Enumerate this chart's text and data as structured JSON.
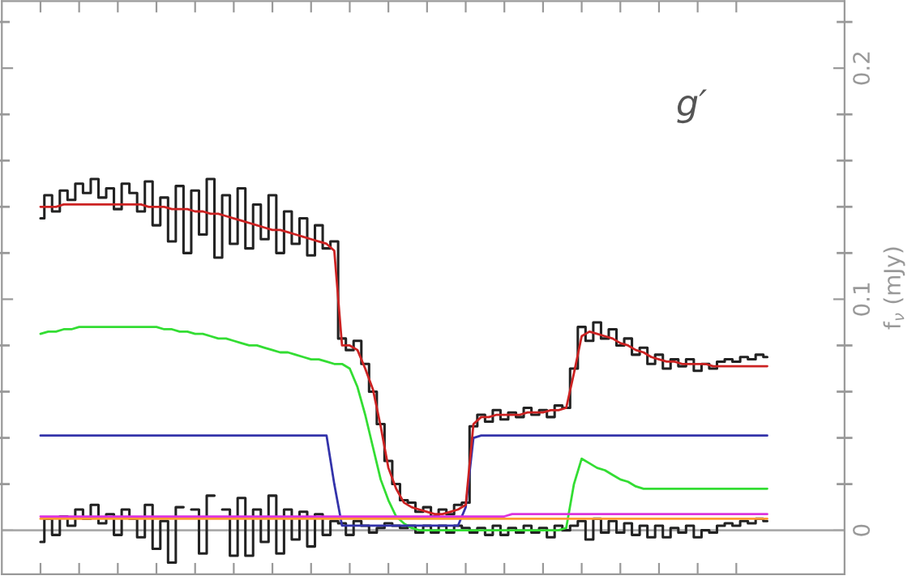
{
  "chart_data": {
    "type": "line",
    "ylabel": "f$_{ν}$ (mJy)",
    "annotations": [
      "g′"
    ],
    "categories": [
      null,
      null,
      null,
      null,
      null,
      null,
      null,
      null,
      null,
      null,
      null,
      null,
      null,
      null,
      null,
      null,
      null,
      null,
      null,
      null,
      null,
      null,
      null,
      null,
      null,
      null,
      null,
      null,
      null,
      null,
      null,
      null,
      null,
      null,
      null,
      null,
      null,
      null,
      null,
      null,
      null,
      null,
      null,
      null,
      null,
      null,
      null,
      null,
      null,
      null,
      null,
      null,
      null,
      null,
      null,
      null,
      null,
      null,
      null,
      null,
      null,
      null,
      null,
      null,
      null,
      null,
      null,
      null,
      null,
      null,
      null,
      null,
      null,
      null,
      null,
      null,
      null,
      null,
      null,
      null,
      null,
      null,
      null,
      null,
      null,
      null,
      null,
      null,
      null,
      null,
      null,
      null,
      null,
      null,
      null
    ],
    "series": [
      {
        "type": "step",
        "color": "#222222",
        "values": [
          0.135,
          0.145,
          0.138,
          0.147,
          0.143,
          0.15,
          0.146,
          0.152,
          0.144,
          0.148,
          0.139,
          0.15,
          0.146,
          0.138,
          0.151,
          0.132,
          0.144,
          0.125,
          0.149,
          0.12,
          0.147,
          0.128,
          0.152,
          0.118,
          0.145,
          0.124,
          0.148,
          0.122,
          0.141,
          0.126,
          0.145,
          0.12,
          0.138,
          0.124,
          0.135,
          0.119,
          0.132,
          0.122,
          0.125,
          0.083,
          0.078,
          0.082,
          0.072,
          0.06,
          0.046,
          0.03,
          0.02,
          0.013,
          0.012,
          0.008,
          0.01,
          0.006,
          0.009,
          0.007,
          0.011,
          0.012,
          0.045,
          0.05,
          0.047,
          0.052,
          0.048,
          0.051,
          0.049,
          0.053,
          0.05,
          0.052,
          0.049,
          0.054,
          0.053,
          0.07,
          0.088,
          0.082,
          0.09,
          0.083,
          0.087,
          0.08,
          0.083,
          0.076,
          0.079,
          0.072,
          0.076,
          0.07,
          0.074,
          0.071,
          0.074,
          0.069,
          0.072,
          0.07,
          0.073,
          0.074,
          0.073,
          0.075,
          0.074,
          0.076,
          0.075
        ]
      },
      {
        "type": "step",
        "color": "#222222",
        "values": [
          -0.005,
          0.005,
          -0.002,
          0.006,
          0.002,
          0.009,
          0.005,
          0.011,
          0.003,
          0.007,
          -0.002,
          0.009,
          0.005,
          -0.003,
          0.011,
          -0.008,
          0.004,
          -0.014,
          0.01,
          null,
          0.009,
          -0.01,
          0.015,
          null,
          0.009,
          -0.011,
          0.014,
          -0.011,
          0.009,
          -0.005,
          0.015,
          -0.01,
          0.009,
          -0.004,
          0.008,
          -0.007,
          0.007,
          -0.002,
          0.004,
          0.003,
          -0.002,
          0.004,
          0.002,
          -0.001,
          0.001,
          0.003,
          0.002,
          0.001,
          0.002,
          -0.001,
          0.002,
          -0.001,
          0.002,
          -0.001,
          0.002,
          0.001,
          -0.001,
          0.001,
          -0.002,
          0.002,
          -0.002,
          0.001,
          -0.001,
          0.002,
          -0.001,
          0.001,
          -0.003,
          0.002,
          0.0,
          0.002,
          0.004,
          -0.004,
          0.005,
          -0.001,
          0.004,
          -0.001,
          0.003,
          -0.002,
          0.002,
          -0.003,
          0.002,
          -0.003,
          0.001,
          -0.001,
          0.002,
          -0.003,
          0.0,
          -0.001,
          0.002,
          0.003,
          0.002,
          0.004,
          0.003,
          0.005,
          0.004
        ]
      },
      {
        "color": "#33dd33",
        "values": [
          0.085,
          0.086,
          0.086,
          0.087,
          0.087,
          0.088,
          0.088,
          0.088,
          0.088,
          0.088,
          0.088,
          0.088,
          0.088,
          0.088,
          0.088,
          0.088,
          0.087,
          0.087,
          0.086,
          0.086,
          0.085,
          0.085,
          0.084,
          0.083,
          0.083,
          0.082,
          0.081,
          0.08,
          0.08,
          0.079,
          0.078,
          0.077,
          0.077,
          0.076,
          0.075,
          0.074,
          0.074,
          0.073,
          0.072,
          0.072,
          0.07,
          0.062,
          0.05,
          0.036,
          0.022,
          0.013,
          0.006,
          0.003,
          0.001,
          0.0,
          0.0,
          0.0,
          0.0,
          0.0,
          0.0,
          0.0,
          0.0,
          0.0,
          0.0,
          0.0,
          0.0,
          0.0,
          0.0,
          0.0,
          0.0,
          0.0,
          0.0,
          0.0,
          0.001,
          0.02,
          0.031,
          0.029,
          0.027,
          0.026,
          0.024,
          0.022,
          0.021,
          0.019,
          0.018,
          0.018,
          0.018,
          0.018,
          0.018,
          0.018,
          0.018,
          0.018,
          0.018,
          0.018,
          0.018,
          0.018,
          0.018,
          0.018,
          0.018,
          0.018,
          0.018
        ]
      },
      {
        "color": "#3333aa",
        "values": [
          0.041,
          0.041,
          0.041,
          0.041,
          0.041,
          0.041,
          0.041,
          0.041,
          0.041,
          0.041,
          0.041,
          0.041,
          0.041,
          0.041,
          0.041,
          0.041,
          0.041,
          0.041,
          0.041,
          0.041,
          0.041,
          0.041,
          0.041,
          0.041,
          0.041,
          0.041,
          0.041,
          0.041,
          0.041,
          0.041,
          0.041,
          0.041,
          0.041,
          0.041,
          0.041,
          0.041,
          0.041,
          0.041,
          0.02,
          0.002,
          0.002,
          0.002,
          0.002,
          0.002,
          0.002,
          0.002,
          0.002,
          0.002,
          0.002,
          0.002,
          0.002,
          0.002,
          0.002,
          0.002,
          0.002,
          0.01,
          0.04,
          0.041,
          0.041,
          0.041,
          0.041,
          0.041,
          0.041,
          0.041,
          0.041,
          0.041,
          0.041,
          0.041,
          0.041,
          0.041,
          0.041,
          0.041,
          0.041,
          0.041,
          0.041,
          0.041,
          0.041,
          0.041,
          0.041,
          0.041,
          0.041,
          0.041,
          0.041,
          0.041,
          0.041,
          0.041,
          0.041,
          0.041,
          0.041,
          0.041,
          0.041,
          0.041,
          0.041,
          0.041,
          0.041
        ]
      },
      {
        "color": "#dd33dd",
        "values": [
          0.006,
          0.006,
          0.006,
          0.006,
          0.006,
          0.006,
          0.006,
          0.006,
          0.006,
          0.006,
          0.006,
          0.006,
          0.006,
          0.006,
          0.006,
          0.006,
          0.006,
          0.006,
          0.006,
          0.006,
          0.006,
          0.006,
          0.006,
          0.006,
          0.006,
          0.006,
          0.006,
          0.006,
          0.006,
          0.006,
          0.006,
          0.006,
          0.006,
          0.006,
          0.006,
          0.006,
          0.006,
          0.006,
          0.006,
          0.006,
          0.006,
          0.006,
          0.006,
          0.006,
          0.006,
          0.006,
          0.006,
          0.006,
          0.006,
          0.006,
          0.006,
          0.006,
          0.006,
          0.006,
          0.006,
          0.006,
          0.006,
          0.006,
          0.006,
          0.006,
          0.006,
          0.007,
          0.007,
          0.007,
          0.007,
          0.007,
          0.007,
          0.007,
          0.007,
          0.007,
          0.007,
          0.007,
          0.007,
          0.007,
          0.007,
          0.007,
          0.007,
          0.007,
          0.007,
          0.007,
          0.007,
          0.007,
          0.007,
          0.007,
          0.007,
          0.007,
          0.007,
          0.007,
          0.007,
          0.007,
          0.007,
          0.007,
          0.007,
          0.007,
          0.007
        ]
      },
      {
        "color": "#ff9933",
        "values": [
          0.005,
          0.005,
          0.005,
          0.005,
          0.005,
          0.005,
          0.005,
          0.005,
          0.005,
          0.005,
          0.005,
          0.005,
          0.005,
          0.005,
          0.005,
          0.005,
          0.005,
          0.005,
          0.005,
          0.005,
          0.005,
          0.005,
          0.005,
          0.005,
          0.005,
          0.005,
          0.005,
          0.005,
          0.005,
          0.005,
          0.005,
          0.005,
          0.005,
          0.005,
          0.005,
          0.005,
          0.005,
          0.005,
          0.005,
          0.005,
          0.005,
          0.005,
          0.005,
          0.005,
          0.005,
          0.005,
          0.005,
          0.005,
          0.005,
          0.005,
          0.005,
          0.005,
          0.005,
          0.005,
          0.005,
          0.005,
          0.005,
          0.005,
          0.005,
          0.005,
          0.005,
          0.005,
          0.005,
          0.005,
          0.005,
          0.005,
          0.005,
          0.005,
          0.005,
          0.005,
          0.005,
          0.005,
          0.005,
          0.005,
          0.005,
          0.005,
          0.005,
          0.005,
          0.005,
          0.005,
          0.005,
          0.005,
          0.005,
          0.005,
          0.005,
          0.005,
          0.005,
          0.005,
          0.005,
          0.005,
          0.005,
          0.005,
          0.005,
          0.005,
          0.005
        ]
      },
      {
        "color": "#cc2222",
        "values": [
          0.14,
          0.14,
          0.14,
          0.141,
          0.141,
          0.141,
          0.141,
          0.141,
          0.141,
          0.141,
          0.141,
          0.141,
          0.141,
          0.141,
          0.14,
          0.14,
          0.14,
          0.139,
          0.139,
          0.139,
          0.138,
          0.138,
          0.137,
          0.137,
          0.136,
          0.135,
          0.134,
          0.133,
          0.132,
          0.131,
          0.13,
          0.13,
          0.129,
          0.128,
          0.127,
          0.126,
          0.125,
          0.124,
          0.121,
          0.08,
          0.08,
          0.078,
          0.07,
          0.061,
          0.045,
          0.027,
          0.018,
          0.012,
          0.01,
          0.009,
          0.008,
          0.007,
          0.007,
          0.008,
          0.009,
          0.011,
          0.046,
          0.049,
          0.049,
          0.05,
          0.05,
          0.05,
          0.05,
          0.051,
          0.051,
          0.051,
          0.052,
          0.052,
          0.053,
          0.068,
          0.084,
          0.086,
          0.085,
          0.084,
          0.083,
          0.081,
          0.08,
          0.078,
          0.077,
          0.075,
          0.074,
          0.073,
          0.073,
          0.072,
          0.072,
          0.072,
          0.072,
          0.071,
          0.071,
          0.071,
          0.071,
          0.071,
          0.071,
          0.071,
          0.071
        ]
      }
    ],
    "ylim": [
      -0.019,
      0.229
    ],
    "yticks": [
      0,
      0.1,
      0.2
    ],
    "ref_lines": [
      {
        "axis": "y",
        "value": 0,
        "color": "#aaaaaa"
      }
    ],
    "tick_labels": "y",
    "grid": false,
    "legend": false
  }
}
